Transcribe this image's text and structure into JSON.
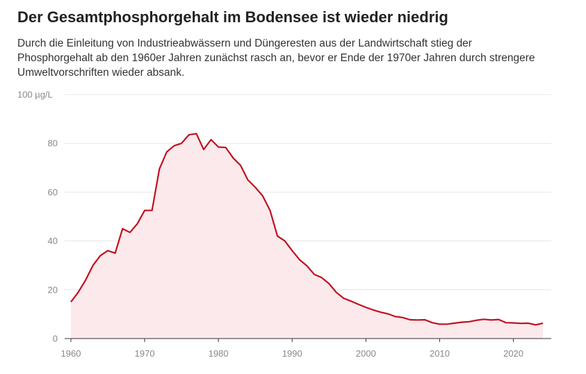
{
  "title": "Der Gesamtphosphorgehalt im Bodensee ist wieder niedrig",
  "subtitle": "Durch die Einleitung von Industrieabwässern und Düngeresten aus der Landwirtschaft stieg der Phosphorgehalt ab den 1960er Jahren zunächst rasch an, bevor er Ende der 1970er Jahren durch strengere Umweltvorschriften wieder absank.",
  "colors": {
    "line": "#c0101f",
    "area": "#fbe9ec",
    "grid": "#e6e6e6",
    "axis": "#333333",
    "tick_text": "#888888"
  },
  "chart_data": {
    "type": "area",
    "title": "",
    "xlabel": "",
    "ylabel": "",
    "unit": "µg/L",
    "xlim": [
      1960,
      2024
    ],
    "ylim": [
      0,
      100
    ],
    "grid": true,
    "x_ticks": [
      1960,
      1970,
      1980,
      1990,
      2000,
      2010,
      2020
    ],
    "y_ticks": [
      0,
      20,
      40,
      60,
      80,
      100
    ],
    "y_tick_labels": [
      "0",
      "20",
      "40",
      "60",
      "80",
      "100 µg/L"
    ],
    "x": [
      1960,
      1961,
      1962,
      1963,
      1964,
      1965,
      1966,
      1967,
      1968,
      1969,
      1970,
      1971,
      1972,
      1973,
      1974,
      1975,
      1976,
      1977,
      1978,
      1979,
      1980,
      1981,
      1982,
      1983,
      1984,
      1985,
      1986,
      1987,
      1988,
      1989,
      1990,
      1991,
      1992,
      1993,
      1994,
      1995,
      1996,
      1997,
      1998,
      1999,
      2000,
      2001,
      2002,
      2003,
      2004,
      2005,
      2006,
      2007,
      2008,
      2009,
      2010,
      2011,
      2012,
      2013,
      2014,
      2015,
      2016,
      2017,
      2018,
      2019,
      2020,
      2021,
      2022,
      2023,
      2024
    ],
    "y": [
      15,
      19,
      24,
      30,
      34,
      36,
      35,
      45,
      43.5,
      47,
      52.5,
      52.5,
      69.5,
      76.5,
      79,
      80,
      83.5,
      84,
      77.5,
      81.5,
      78.5,
      78.3,
      74,
      71,
      65,
      62,
      58.5,
      52.5,
      42,
      40,
      36,
      32.3,
      29.8,
      26.3,
      25,
      22.5,
      18.9,
      16.5,
      15.3,
      14,
      12.8,
      11.7,
      10.8,
      10.1,
      9,
      8.6,
      7.7,
      7.6,
      7.7,
      6.5,
      5.9,
      5.9,
      6.3,
      6.7,
      6.9,
      7.5,
      7.9,
      7.6,
      7.8,
      6.5,
      6.4,
      6.2,
      6.3,
      5.6,
      6.3
    ]
  }
}
